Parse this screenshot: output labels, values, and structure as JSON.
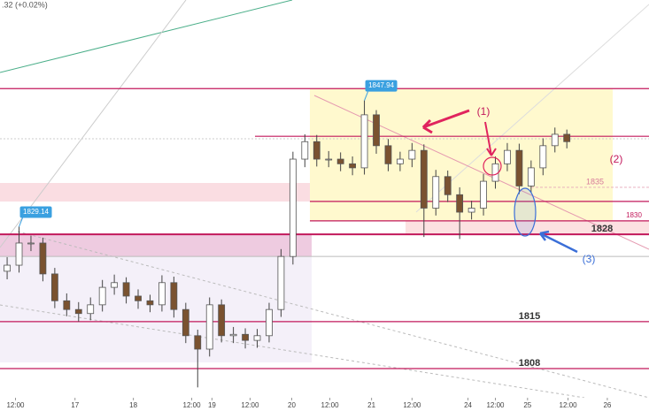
{
  "chart_data": {
    "type": "candlestick",
    "header": ".32 (+0.02%)",
    "opens": [
      1822.5,
      1823.4,
      1826.7,
      1826.7,
      1822.1,
      1818.1,
      1816.8,
      1816.2,
      1817.5,
      1820.1,
      1820.8,
      1818.8,
      1818.1,
      1817.5,
      1820.8,
      1816.8,
      1812.9,
      1810.9,
      1817.5,
      1812.9,
      1813.1,
      1812.2,
      1812.9,
      1816.8,
      1824.7,
      1839.2,
      1841.8,
      1839.2,
      1839.2,
      1838.5,
      1837.9,
      1845.8,
      1841.2,
      1838.5,
      1839.2,
      1840.5,
      1831.9,
      1836.6,
      1833.9,
      1831.3,
      1831.9,
      1835.9,
      1838.5,
      1840.5,
      1835.2,
      1837.9,
      1841.2,
      1842.9
    ],
    "highs": [
      1824.6,
      1829.14,
      1827.8,
      1827.5,
      1823.0,
      1819.2,
      1817.9,
      1818.6,
      1821.2,
      1822.0,
      1821.6,
      1819.8,
      1819.0,
      1821.9,
      1821.7,
      1817.8,
      1813.8,
      1818.6,
      1818.3,
      1814.2,
      1814.0,
      1813.9,
      1817.8,
      1825.8,
      1840.3,
      1842.9,
      1842.8,
      1840.4,
      1840.2,
      1839.6,
      1847.94,
      1846.5,
      1842.2,
      1840.3,
      1841.6,
      1841.4,
      1837.6,
      1837.5,
      1835.0,
      1833.0,
      1837.0,
      1839.6,
      1841.6,
      1841.5,
      1839.0,
      1842.3,
      1843.9,
      1843.6
    ],
    "lows": [
      1821.3,
      1822.3,
      1825.5,
      1821.0,
      1817.0,
      1815.8,
      1815.0,
      1815.2,
      1816.5,
      1819.0,
      1817.7,
      1816.9,
      1816.4,
      1816.5,
      1815.6,
      1811.8,
      1805.2,
      1809.8,
      1811.9,
      1811.8,
      1811.0,
      1811.1,
      1811.9,
      1815.7,
      1823.5,
      1838.0,
      1838.1,
      1838.0,
      1837.4,
      1836.8,
      1836.9,
      1840.0,
      1837.4,
      1837.4,
      1838.0,
      1827.6,
      1830.8,
      1832.8,
      1827.3,
      1830.2,
      1830.8,
      1834.8,
      1837.4,
      1834.0,
      1834.2,
      1836.8,
      1840.2,
      1840.8
    ],
    "closes": [
      1823.4,
      1826.7,
      1826.7,
      1822.1,
      1818.1,
      1816.8,
      1816.2,
      1817.5,
      1820.1,
      1820.8,
      1818.8,
      1818.1,
      1817.5,
      1820.8,
      1816.8,
      1812.9,
      1810.9,
      1817.5,
      1812.9,
      1813.1,
      1812.2,
      1812.9,
      1816.8,
      1824.7,
      1839.2,
      1841.8,
      1839.2,
      1839.2,
      1838.5,
      1837.9,
      1845.8,
      1841.2,
      1838.5,
      1839.2,
      1840.5,
      1831.9,
      1836.6,
      1833.9,
      1831.3,
      1831.9,
      1835.9,
      1838.5,
      1840.5,
      1835.2,
      1837.9,
      1841.2,
      1842.9,
      1841.8
    ],
    "up_color": "#ffffff",
    "down_color": "#7a5230",
    "xlim": [
      -0.6,
      53.9
    ],
    "xticks": [
      {
        "value": 0.7,
        "label": "12:00"
      },
      {
        "value": 5.7,
        "label": "17"
      },
      {
        "value": 10.6,
        "label": "18"
      },
      {
        "value": 15.5,
        "label": "12:00"
      },
      {
        "value": 17.2,
        "label": "19"
      },
      {
        "value": 20.4,
        "label": "12:00"
      },
      {
        "value": 23.9,
        "label": "20"
      },
      {
        "value": 27.1,
        "label": "12:00"
      },
      {
        "value": 30.6,
        "label": "21"
      },
      {
        "value": 34,
        "label": "12:00"
      },
      {
        "value": 38.7,
        "label": "24"
      },
      {
        "value": 41,
        "label": "12:00"
      },
      {
        "value": 43.7,
        "label": "25"
      },
      {
        "value": 47.1,
        "label": "12:00"
      },
      {
        "value": 50.4,
        "label": "26"
      }
    ],
    "ylim": [
      1803,
      1862.9
    ],
    "levels": [
      1849.7,
      1842.6,
      1832.9,
      1824.7
    ],
    "labeled_levels": [
      1835,
      1830,
      1828,
      1815,
      1808
    ],
    "level_color": "#c2185b",
    "annotations": [
      "(1)",
      "(2)",
      "(3)"
    ]
  }
}
